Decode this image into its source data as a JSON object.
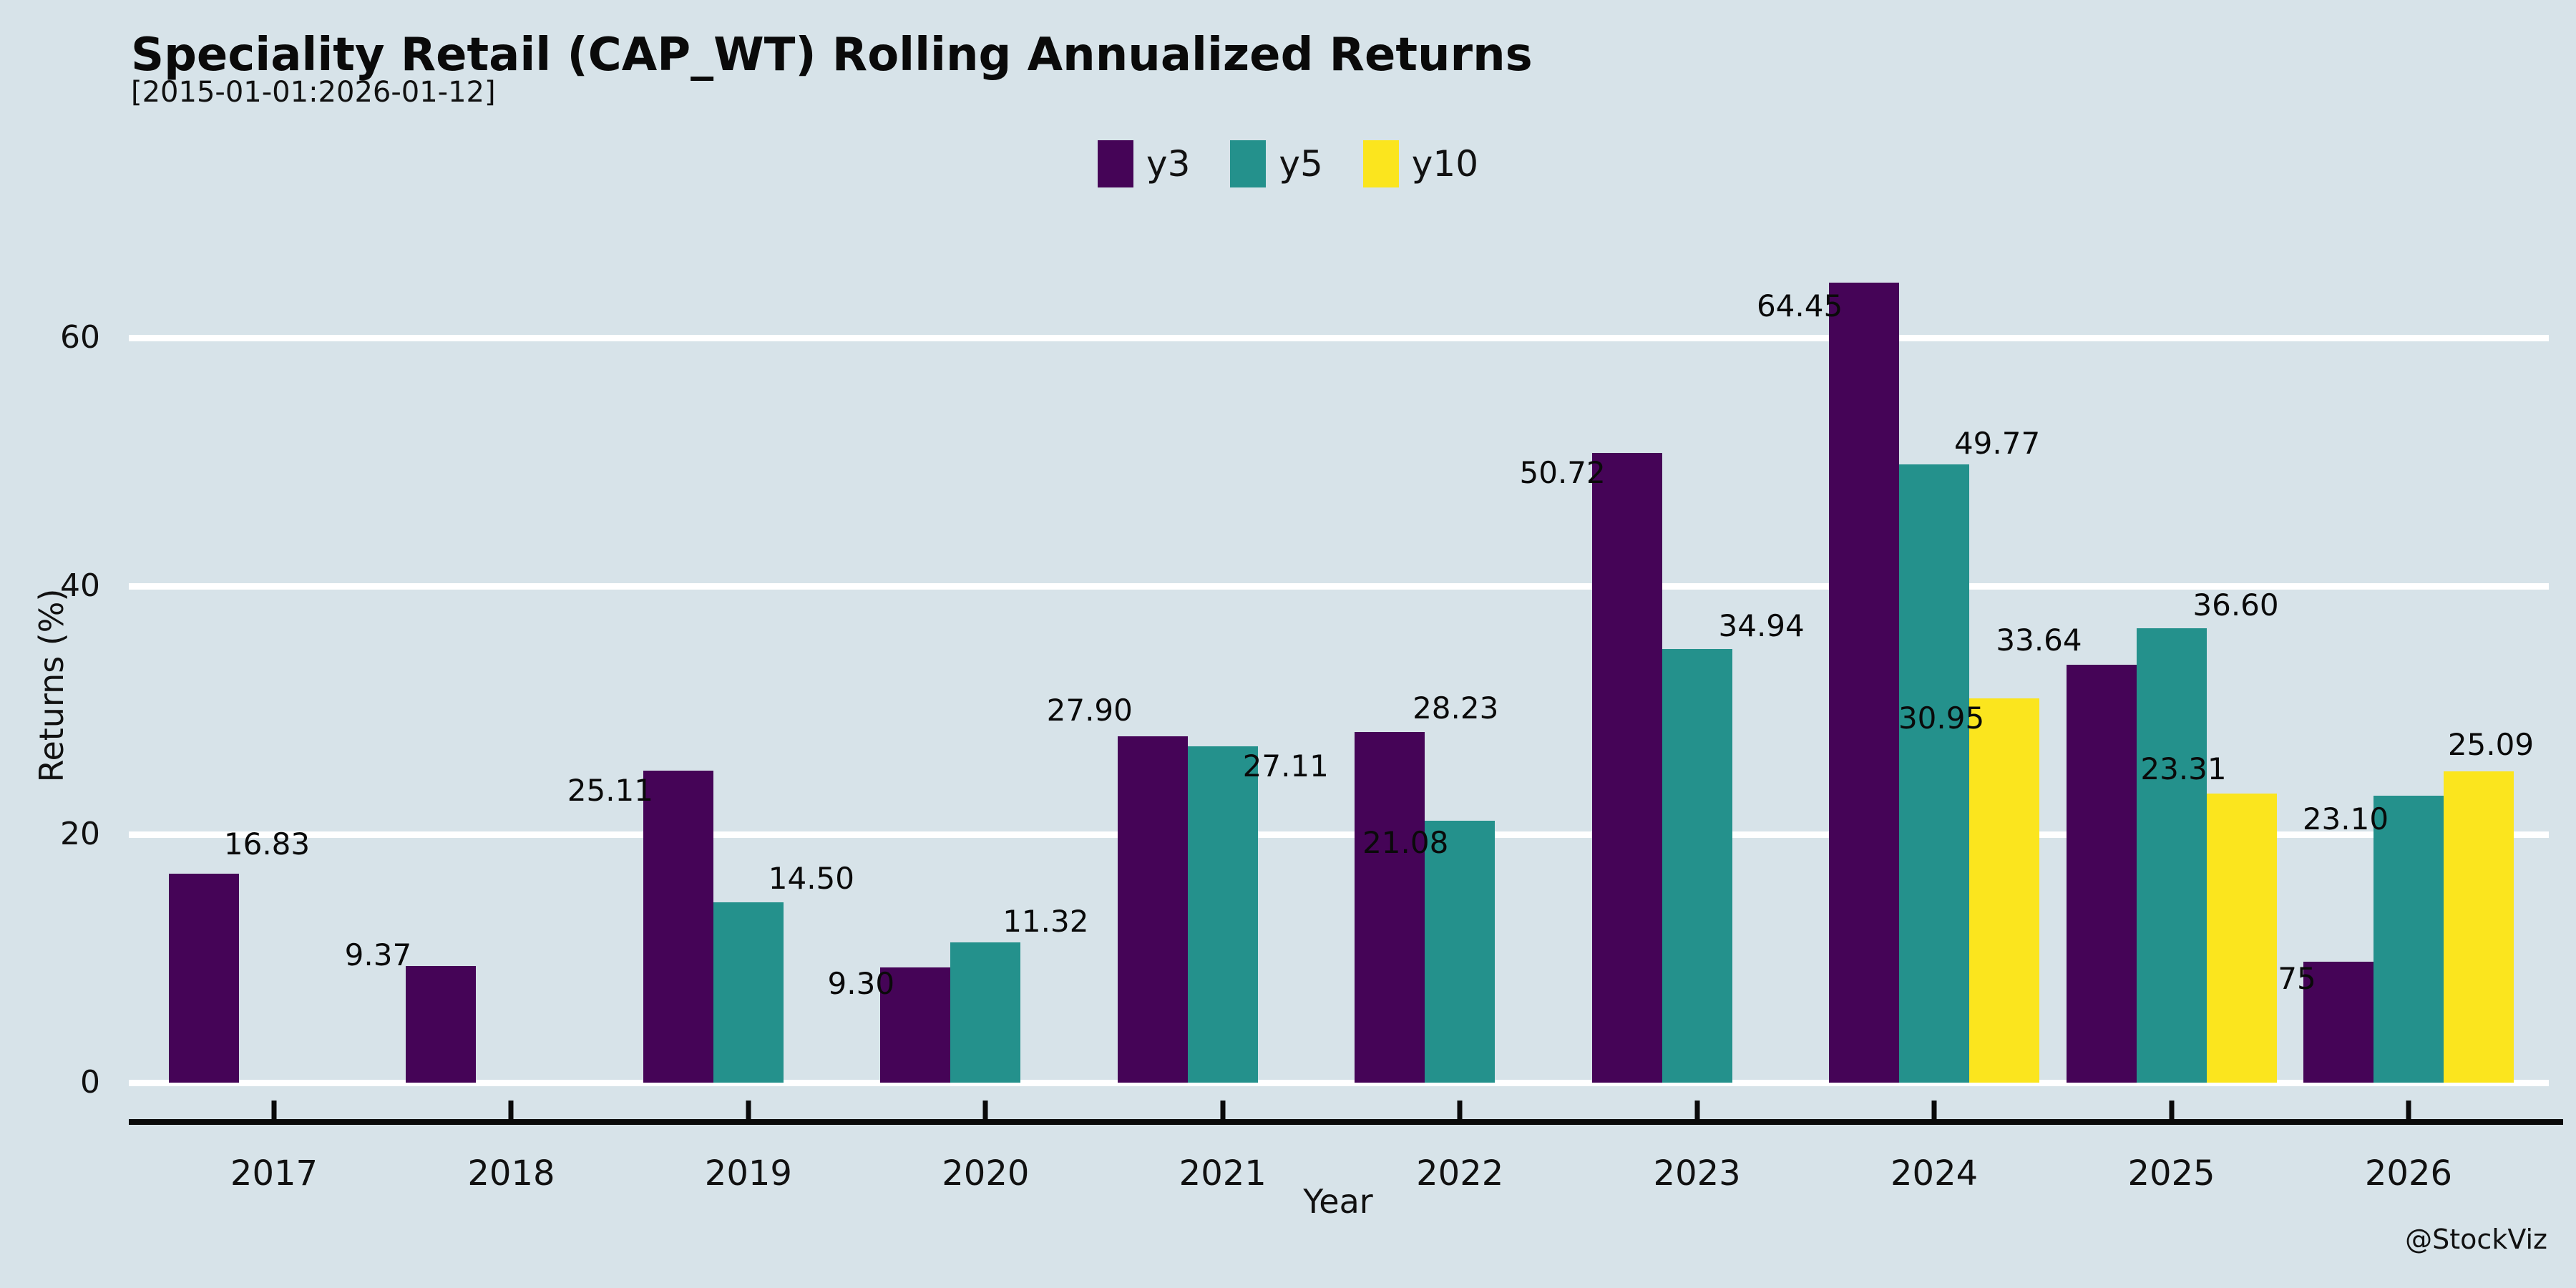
{
  "header": {
    "title": "Speciality Retail (CAP_WT) Rolling Annualized Returns",
    "subtitle": "[2015-01-01:2026-01-12]"
  },
  "watermark": "@StockViz",
  "chart_data": {
    "type": "bar",
    "title": "Speciality Retail (CAP_WT) Rolling Annualized Returns",
    "subtitle": "[2015-01-01:2026-01-12]",
    "xlabel": "Year",
    "ylabel": "Returns (%)",
    "categories": [
      "2017",
      "2018",
      "2019",
      "2020",
      "2021",
      "2022",
      "2023",
      "2024",
      "2025",
      "2026"
    ],
    "series": [
      {
        "name": "y3",
        "color": "#450457",
        "values": [
          16.83,
          9.37,
          25.11,
          9.3,
          27.9,
          28.23,
          50.72,
          64.45,
          33.64,
          9.75
        ]
      },
      {
        "name": "y5",
        "color": "#24918C",
        "values": [
          null,
          null,
          14.5,
          11.32,
          27.11,
          21.08,
          34.94,
          49.77,
          36.6,
          23.1
        ]
      },
      {
        "name": "y10",
        "color": "#FBE51E",
        "values": [
          null,
          null,
          null,
          null,
          null,
          null,
          null,
          30.95,
          23.31,
          25.09
        ]
      }
    ],
    "yticks": [
      0,
      20,
      40,
      60
    ],
    "ylim": [
      0,
      72
    ],
    "grid": true,
    "gridline_color": "#ffffff",
    "background_color": "#d7e3e9",
    "legend_position": "top-center",
    "bar_labels_decimals": 2
  }
}
